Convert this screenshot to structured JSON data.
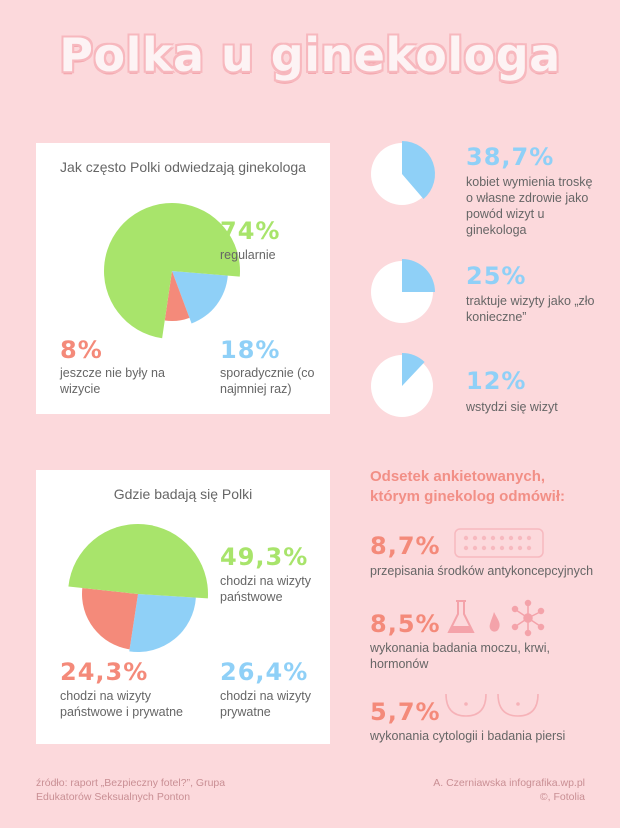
{
  "title": "Polka u ginekologa",
  "colors": {
    "green": "#a8e46b",
    "blue": "#8fd0f7",
    "salmon": "#f48a7a",
    "coral": "#f28f86",
    "bg": "#fcd9dc"
  },
  "chart_data": [
    {
      "type": "pie",
      "title": "Jak często Polki odwiedzają ginekologa",
      "slices": [
        {
          "value": 74,
          "label": "74%",
          "desc": "regularnie",
          "color": "#a8e46b"
        },
        {
          "value": 18,
          "label": "18%",
          "desc": "sporadycznie (co najmniej raz)",
          "color": "#8fd0f7"
        },
        {
          "value": 8,
          "label": "8%",
          "desc": "jeszcze nie były na wizycie",
          "color": "#f48a7a"
        }
      ]
    },
    {
      "type": "pie",
      "title": "Gdzie badają się Polki",
      "slices": [
        {
          "value": 49.3,
          "label": "49,3%",
          "desc": "chodzi na wizyty państwowe",
          "color": "#a8e46b"
        },
        {
          "value": 26.4,
          "label": "26,4%",
          "desc": "chodzi na wizyty prywatne",
          "color": "#8fd0f7"
        },
        {
          "value": 24.3,
          "label": "24,3%",
          "desc": "chodzi na wizyty państwowe i prywatne",
          "color": "#f48a7a"
        }
      ]
    },
    {
      "type": "pie",
      "items": [
        {
          "value": 38.7,
          "label": "38,7%",
          "desc": "kobiet wymienia troskę o własne zdrowie jako powód wizyt u ginekologa"
        },
        {
          "value": 25,
          "label": "25%",
          "desc": "traktuje wizyty jako „zło konieczne”"
        },
        {
          "value": 12,
          "label": "12%",
          "desc": "wstydzi się wizyt"
        }
      ]
    },
    {
      "type": "table",
      "title": "Odsetek ankietowanych, którym ginekolog odmówił:",
      "items": [
        {
          "value": 8.7,
          "label": "8,7%",
          "desc": "przepisania środków antykoncepcyjnych",
          "icon": "pill-pack-icon"
        },
        {
          "value": 8.5,
          "label": "8,5%",
          "desc": "wykonania badania moczu, krwi, hormonów",
          "icon": "lab-test-icon"
        },
        {
          "value": 5.7,
          "label": "5,7%",
          "desc": "wykonania cytologii i badania piersi",
          "icon": "breast-icon"
        }
      ]
    }
  ],
  "source": {
    "left": "źródło: raport „Bezpieczny fotel?”, Grupa Edukatorów Seksualnych Ponton",
    "right": "A. Czerniawska infografika.wp.pl ©, Fotolia"
  }
}
